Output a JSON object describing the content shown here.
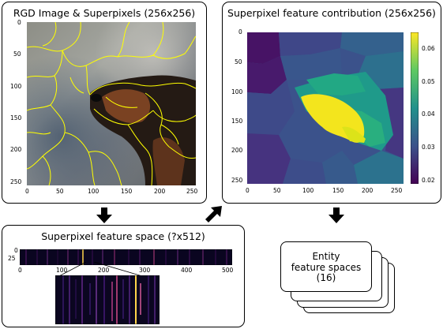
{
  "panels": {
    "rgb": {
      "title": "RGD Image & Superpixels (256x256)",
      "x_ticks": [
        "0",
        "50",
        "100",
        "150",
        "200",
        "250"
      ],
      "y_ticks": [
        "0",
        "50",
        "100",
        "150",
        "200",
        "250"
      ]
    },
    "contribution": {
      "title": "Superpixel feature contribution (256x256)",
      "x_ticks": [
        "0",
        "50",
        "100",
        "150",
        "200",
        "250"
      ],
      "y_ticks": [
        "0",
        "50",
        "100",
        "150",
        "200",
        "250"
      ],
      "colorbar_ticks": [
        "0.06",
        "0.05",
        "0.04",
        "0.03",
        "0.02"
      ]
    },
    "feature_space": {
      "title": "Superpixel feature space (?x512)",
      "x_ticks": [
        "0",
        "100",
        "200",
        "300",
        "400",
        "500"
      ],
      "y_ticks": [
        "0",
        "25"
      ]
    },
    "entity": {
      "line1": "Entity",
      "line2": "feature spaces",
      "line3": "(16)"
    }
  },
  "colors": {
    "superpixel_outline": "#ffff00",
    "viridis_low": "#440154",
    "viridis_high": "#fde725",
    "arrow": "#000000"
  }
}
